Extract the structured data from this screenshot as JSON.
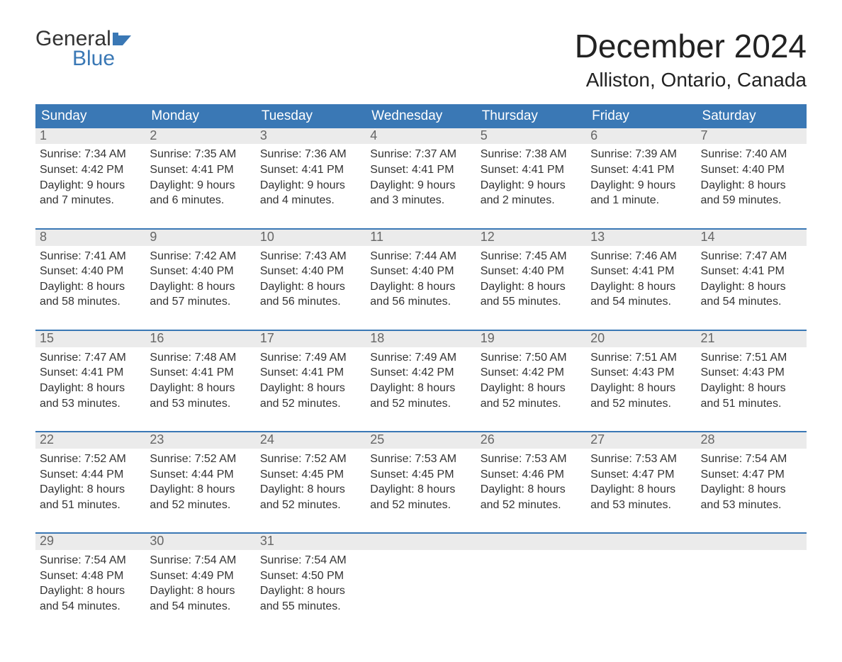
{
  "logo": {
    "word1": "General",
    "word2": "Blue"
  },
  "colors": {
    "header_bg": "#3a78b5",
    "header_text": "#ffffff",
    "daynum_bg": "#ebebeb",
    "daynum_text": "#666666",
    "border_top": "#3a78b5",
    "logo_blue": "#3a78b5",
    "body_text": "#333333",
    "background": "#ffffff",
    "title_color": "#222222"
  },
  "typography": {
    "month_title_fontsize": 46,
    "location_fontsize": 28,
    "header_fontsize": 19,
    "daynum_fontsize": 18,
    "body_fontsize": 16,
    "logo_fontsize": 30
  },
  "title": "December 2024",
  "location": "Alliston, Ontario, Canada",
  "day_headers": [
    "Sunday",
    "Monday",
    "Tuesday",
    "Wednesday",
    "Thursday",
    "Friday",
    "Saturday"
  ],
  "weeks": [
    [
      {
        "n": "1",
        "sunrise": "Sunrise: 7:34 AM",
        "sunset": "Sunset: 4:42 PM",
        "day1": "Daylight: 9 hours",
        "day2": "and 7 minutes."
      },
      {
        "n": "2",
        "sunrise": "Sunrise: 7:35 AM",
        "sunset": "Sunset: 4:41 PM",
        "day1": "Daylight: 9 hours",
        "day2": "and 6 minutes."
      },
      {
        "n": "3",
        "sunrise": "Sunrise: 7:36 AM",
        "sunset": "Sunset: 4:41 PM",
        "day1": "Daylight: 9 hours",
        "day2": "and 4 minutes."
      },
      {
        "n": "4",
        "sunrise": "Sunrise: 7:37 AM",
        "sunset": "Sunset: 4:41 PM",
        "day1": "Daylight: 9 hours",
        "day2": "and 3 minutes."
      },
      {
        "n": "5",
        "sunrise": "Sunrise: 7:38 AM",
        "sunset": "Sunset: 4:41 PM",
        "day1": "Daylight: 9 hours",
        "day2": "and 2 minutes."
      },
      {
        "n": "6",
        "sunrise": "Sunrise: 7:39 AM",
        "sunset": "Sunset: 4:41 PM",
        "day1": "Daylight: 9 hours",
        "day2": "and 1 minute."
      },
      {
        "n": "7",
        "sunrise": "Sunrise: 7:40 AM",
        "sunset": "Sunset: 4:40 PM",
        "day1": "Daylight: 8 hours",
        "day2": "and 59 minutes."
      }
    ],
    [
      {
        "n": "8",
        "sunrise": "Sunrise: 7:41 AM",
        "sunset": "Sunset: 4:40 PM",
        "day1": "Daylight: 8 hours",
        "day2": "and 58 minutes."
      },
      {
        "n": "9",
        "sunrise": "Sunrise: 7:42 AM",
        "sunset": "Sunset: 4:40 PM",
        "day1": "Daylight: 8 hours",
        "day2": "and 57 minutes."
      },
      {
        "n": "10",
        "sunrise": "Sunrise: 7:43 AM",
        "sunset": "Sunset: 4:40 PM",
        "day1": "Daylight: 8 hours",
        "day2": "and 56 minutes."
      },
      {
        "n": "11",
        "sunrise": "Sunrise: 7:44 AM",
        "sunset": "Sunset: 4:40 PM",
        "day1": "Daylight: 8 hours",
        "day2": "and 56 minutes."
      },
      {
        "n": "12",
        "sunrise": "Sunrise: 7:45 AM",
        "sunset": "Sunset: 4:40 PM",
        "day1": "Daylight: 8 hours",
        "day2": "and 55 minutes."
      },
      {
        "n": "13",
        "sunrise": "Sunrise: 7:46 AM",
        "sunset": "Sunset: 4:41 PM",
        "day1": "Daylight: 8 hours",
        "day2": "and 54 minutes."
      },
      {
        "n": "14",
        "sunrise": "Sunrise: 7:47 AM",
        "sunset": "Sunset: 4:41 PM",
        "day1": "Daylight: 8 hours",
        "day2": "and 54 minutes."
      }
    ],
    [
      {
        "n": "15",
        "sunrise": "Sunrise: 7:47 AM",
        "sunset": "Sunset: 4:41 PM",
        "day1": "Daylight: 8 hours",
        "day2": "and 53 minutes."
      },
      {
        "n": "16",
        "sunrise": "Sunrise: 7:48 AM",
        "sunset": "Sunset: 4:41 PM",
        "day1": "Daylight: 8 hours",
        "day2": "and 53 minutes."
      },
      {
        "n": "17",
        "sunrise": "Sunrise: 7:49 AM",
        "sunset": "Sunset: 4:41 PM",
        "day1": "Daylight: 8 hours",
        "day2": "and 52 minutes."
      },
      {
        "n": "18",
        "sunrise": "Sunrise: 7:49 AM",
        "sunset": "Sunset: 4:42 PM",
        "day1": "Daylight: 8 hours",
        "day2": "and 52 minutes."
      },
      {
        "n": "19",
        "sunrise": "Sunrise: 7:50 AM",
        "sunset": "Sunset: 4:42 PM",
        "day1": "Daylight: 8 hours",
        "day2": "and 52 minutes."
      },
      {
        "n": "20",
        "sunrise": "Sunrise: 7:51 AM",
        "sunset": "Sunset: 4:43 PM",
        "day1": "Daylight: 8 hours",
        "day2": "and 52 minutes."
      },
      {
        "n": "21",
        "sunrise": "Sunrise: 7:51 AM",
        "sunset": "Sunset: 4:43 PM",
        "day1": "Daylight: 8 hours",
        "day2": "and 51 minutes."
      }
    ],
    [
      {
        "n": "22",
        "sunrise": "Sunrise: 7:52 AM",
        "sunset": "Sunset: 4:44 PM",
        "day1": "Daylight: 8 hours",
        "day2": "and 51 minutes."
      },
      {
        "n": "23",
        "sunrise": "Sunrise: 7:52 AM",
        "sunset": "Sunset: 4:44 PM",
        "day1": "Daylight: 8 hours",
        "day2": "and 52 minutes."
      },
      {
        "n": "24",
        "sunrise": "Sunrise: 7:52 AM",
        "sunset": "Sunset: 4:45 PM",
        "day1": "Daylight: 8 hours",
        "day2": "and 52 minutes."
      },
      {
        "n": "25",
        "sunrise": "Sunrise: 7:53 AM",
        "sunset": "Sunset: 4:45 PM",
        "day1": "Daylight: 8 hours",
        "day2": "and 52 minutes."
      },
      {
        "n": "26",
        "sunrise": "Sunrise: 7:53 AM",
        "sunset": "Sunset: 4:46 PM",
        "day1": "Daylight: 8 hours",
        "day2": "and 52 minutes."
      },
      {
        "n": "27",
        "sunrise": "Sunrise: 7:53 AM",
        "sunset": "Sunset: 4:47 PM",
        "day1": "Daylight: 8 hours",
        "day2": "and 53 minutes."
      },
      {
        "n": "28",
        "sunrise": "Sunrise: 7:54 AM",
        "sunset": "Sunset: 4:47 PM",
        "day1": "Daylight: 8 hours",
        "day2": "and 53 minutes."
      }
    ],
    [
      {
        "n": "29",
        "sunrise": "Sunrise: 7:54 AM",
        "sunset": "Sunset: 4:48 PM",
        "day1": "Daylight: 8 hours",
        "day2": "and 54 minutes."
      },
      {
        "n": "30",
        "sunrise": "Sunrise: 7:54 AM",
        "sunset": "Sunset: 4:49 PM",
        "day1": "Daylight: 8 hours",
        "day2": "and 54 minutes."
      },
      {
        "n": "31",
        "sunrise": "Sunrise: 7:54 AM",
        "sunset": "Sunset: 4:50 PM",
        "day1": "Daylight: 8 hours",
        "day2": "and 55 minutes."
      },
      null,
      null,
      null,
      null
    ]
  ]
}
